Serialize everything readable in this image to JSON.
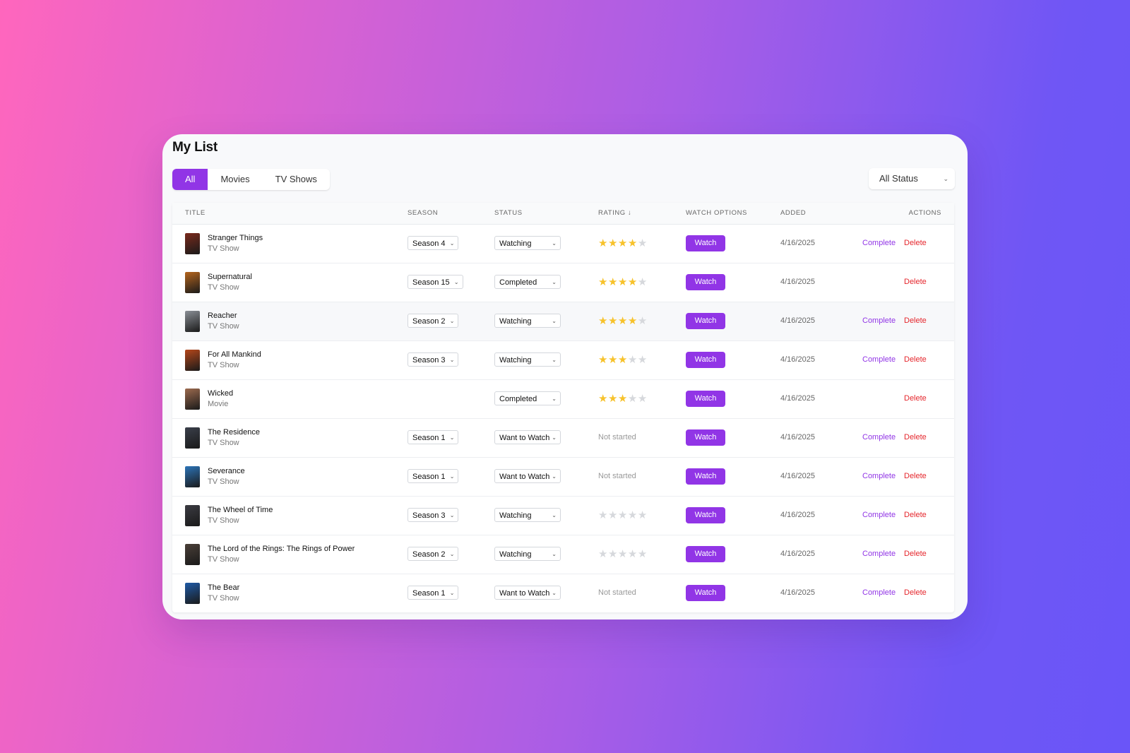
{
  "page": {
    "title": "My List"
  },
  "tabs": [
    "All",
    "Movies",
    "TV Shows"
  ],
  "active_tab": "All",
  "filter": {
    "value": "All Status"
  },
  "columns": {
    "title": "Title",
    "season": "Season",
    "status": "Status",
    "rating": "Rating ↓",
    "watch_options": "Watch Options",
    "added": "Added",
    "actions": "Actions"
  },
  "labels": {
    "watch": "Watch",
    "complete": "Complete",
    "delete": "Delete",
    "not_started": "Not started"
  },
  "rows": [
    {
      "title": "Stranger Things",
      "type": "TV Show",
      "season": "Season 4",
      "status": "Watching",
      "rating": 4,
      "added": "4/16/2025",
      "show_complete": true,
      "poster_color": "#7a2a1c"
    },
    {
      "title": "Supernatural",
      "type": "TV Show",
      "season": "Season 15",
      "status": "Completed",
      "rating": 4,
      "added": "4/16/2025",
      "show_complete": false,
      "poster_color": "#b5651d"
    },
    {
      "title": "Reacher",
      "type": "TV Show",
      "season": "Season 2",
      "status": "Watching",
      "rating": 4,
      "added": "4/16/2025",
      "show_complete": true,
      "poster_color": "#8a8f96"
    },
    {
      "title": "For All Mankind",
      "type": "TV Show",
      "season": "Season 3",
      "status": "Watching",
      "rating": 3,
      "added": "4/16/2025",
      "show_complete": true,
      "poster_color": "#b5471a"
    },
    {
      "title": "Wicked",
      "type": "Movie",
      "season": null,
      "status": "Completed",
      "rating": 3,
      "added": "4/16/2025",
      "show_complete": false,
      "poster_color": "#9c6a4e"
    },
    {
      "title": "The Residence",
      "type": "TV Show",
      "season": "Season 1",
      "status": "Want to Watch",
      "rating": null,
      "added": "4/16/2025",
      "show_complete": true,
      "poster_color": "#3a3f4a"
    },
    {
      "title": "Severance",
      "type": "TV Show",
      "season": "Season 1",
      "status": "Want to Watch",
      "rating": null,
      "added": "4/16/2025",
      "show_complete": true,
      "poster_color": "#2c74b8"
    },
    {
      "title": "The Wheel of Time",
      "type": "TV Show",
      "season": "Season 3",
      "status": "Watching",
      "rating": 0,
      "added": "4/16/2025",
      "show_complete": true,
      "poster_color": "#3b3b42"
    },
    {
      "title": "The Lord of the Rings: The Rings of Power",
      "type": "TV Show",
      "season": "Season 2",
      "status": "Watching",
      "rating": 0,
      "added": "4/16/2025",
      "show_complete": true,
      "poster_color": "#4a3f38"
    },
    {
      "title": "The Bear",
      "type": "TV Show",
      "season": "Season 1",
      "status": "Want to Watch",
      "rating": null,
      "added": "4/16/2025",
      "show_complete": true,
      "poster_color": "#1f5aa6"
    }
  ],
  "colors": {
    "accent": "#9135e6",
    "delete": "#e5262c",
    "star": "#f7c22b",
    "star_empty": "#d6d8dc"
  },
  "icons": {
    "dropdown": "chevron-down-icon",
    "star": "star-icon"
  }
}
